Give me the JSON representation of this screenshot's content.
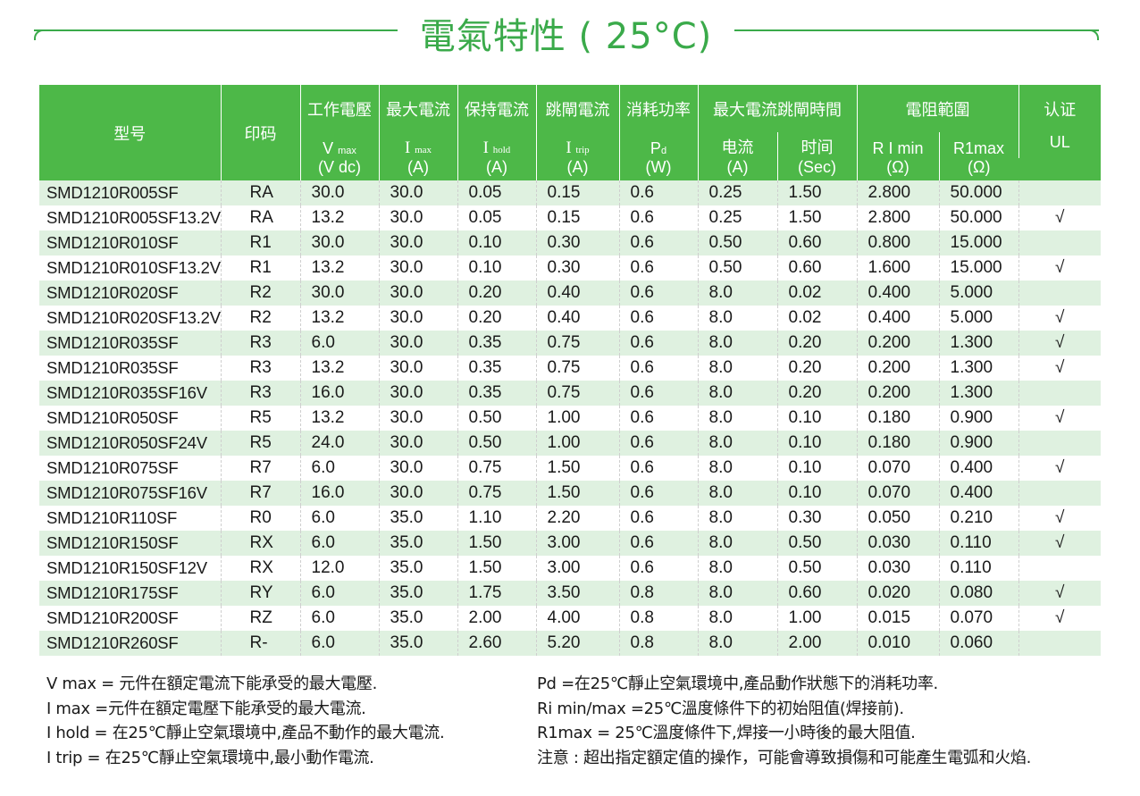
{
  "title": "電氣特性 ( 25°C)",
  "header": {
    "model": "型号",
    "mark": "印码",
    "work_voltage": "工作電壓",
    "max_current": "最大電流",
    "hold_current": "保持電流",
    "trip_current": "跳閘電流",
    "power": "消耗功率",
    "max_trip_time": "最大電流跳閘時間",
    "resistance": "電阻範圍",
    "cert": "认证",
    "vmax_sym": "V",
    "vmax_sub": "max",
    "imax_sym": "I",
    "imax_sub": "max",
    "ihold_sym": "I",
    "ihold_sub": "hold",
    "itrip_sym": "I",
    "itrip_sub": "trip",
    "pd_sym": "P",
    "pd_sub": "d",
    "current_label": "电流",
    "time_label": "时间",
    "rimin": "R I min",
    "r1max": "R1max",
    "ul": "UL",
    "unit_vdc": "(V dc)",
    "unit_a1": "(A)",
    "unit_a2": "(A)",
    "unit_a3": "(A)",
    "unit_w": "(W)",
    "unit_a4": "(A)",
    "unit_sec": "(Sec)",
    "unit_ohm1": "(Ω)",
    "unit_ohm2": "(Ω)"
  },
  "rows": [
    {
      "model": "SMD1210R005SF",
      "mark": "RA",
      "vmax": "30.0",
      "imax": "30.0",
      "ihold": "0.05",
      "itrip": "0.15",
      "pd": "0.6",
      "cur": "0.25",
      "time": "1.50",
      "rmin": "2.800",
      "rmax": "50.000",
      "ul": ""
    },
    {
      "model": "SMD1210R005SF13.2V",
      "mark": "RA",
      "vmax": "13.2",
      "imax": "30.0",
      "ihold": "0.05",
      "itrip": "0.15",
      "pd": "0.6",
      "cur": "0.25",
      "time": "1.50",
      "rmin": "2.800",
      "rmax": "50.000",
      "ul": "√"
    },
    {
      "model": "SMD1210R010SF",
      "mark": "R1",
      "vmax": "30.0",
      "imax": "30.0",
      "ihold": "0.10",
      "itrip": "0.30",
      "pd": "0.6",
      "cur": "0.50",
      "time": "0.60",
      "rmin": "0.800",
      "rmax": "15.000",
      "ul": ""
    },
    {
      "model": "SMD1210R010SF13.2V",
      "mark": "R1",
      "vmax": "13.2",
      "imax": "30.0",
      "ihold": "0.10",
      "itrip": "0.30",
      "pd": "0.6",
      "cur": "0.50",
      "time": "0.60",
      "rmin": "1.600",
      "rmax": "15.000",
      "ul": "√"
    },
    {
      "model": "SMD1210R020SF",
      "mark": "R2",
      "vmax": "30.0",
      "imax": "30.0",
      "ihold": "0.20",
      "itrip": "0.40",
      "pd": "0.6",
      "cur": "8.0",
      "time": "0.02",
      "rmin": "0.400",
      "rmax": "5.000",
      "ul": ""
    },
    {
      "model": "SMD1210R020SF13.2V",
      "mark": "R2",
      "vmax": "13.2",
      "imax": "30.0",
      "ihold": "0.20",
      "itrip": "0.40",
      "pd": "0.6",
      "cur": "8.0",
      "time": "0.02",
      "rmin": "0.400",
      "rmax": "5.000",
      "ul": "√"
    },
    {
      "model": "SMD1210R035SF",
      "mark": "R3",
      "vmax": "6.0",
      "imax": "30.0",
      "ihold": "0.35",
      "itrip": "0.75",
      "pd": "0.6",
      "cur": "8.0",
      "time": "0.20",
      "rmin": "0.200",
      "rmax": "1.300",
      "ul": "√"
    },
    {
      "model": "SMD1210R035SF",
      "mark": "R3",
      "vmax": "13.2",
      "imax": "30.0",
      "ihold": "0.35",
      "itrip": "0.75",
      "pd": "0.6",
      "cur": "8.0",
      "time": "0.20",
      "rmin": "0.200",
      "rmax": "1.300",
      "ul": "√"
    },
    {
      "model": "SMD1210R035SF16V",
      "mark": "R3",
      "vmax": "16.0",
      "imax": "30.0",
      "ihold": "0.35",
      "itrip": "0.75",
      "pd": "0.6",
      "cur": "8.0",
      "time": "0.20",
      "rmin": "0.200",
      "rmax": "1.300",
      "ul": ""
    },
    {
      "model": "SMD1210R050SF",
      "mark": "R5",
      "vmax": "13.2",
      "imax": "30.0",
      "ihold": "0.50",
      "itrip": "1.00",
      "pd": "0.6",
      "cur": "8.0",
      "time": "0.10",
      "rmin": "0.180",
      "rmax": "0.900",
      "ul": "√"
    },
    {
      "model": "SMD1210R050SF24V",
      "mark": "R5",
      "vmax": "24.0",
      "imax": "30.0",
      "ihold": "0.50",
      "itrip": "1.00",
      "pd": "0.6",
      "cur": "8.0",
      "time": "0.10",
      "rmin": "0.180",
      "rmax": "0.900",
      "ul": ""
    },
    {
      "model": "SMD1210R075SF",
      "mark": "R7",
      "vmax": "6.0",
      "imax": "30.0",
      "ihold": "0.75",
      "itrip": "1.50",
      "pd": "0.6",
      "cur": "8.0",
      "time": "0.10",
      "rmin": "0.070",
      "rmax": "0.400",
      "ul": "√"
    },
    {
      "model": "SMD1210R075SF16V",
      "mark": "R7",
      "vmax": "16.0",
      "imax": "30.0",
      "ihold": "0.75",
      "itrip": "1.50",
      "pd": "0.6",
      "cur": "8.0",
      "time": "0.10",
      "rmin": "0.070",
      "rmax": "0.400",
      "ul": ""
    },
    {
      "model": "SMD1210R110SF",
      "mark": "R0",
      "vmax": "6.0",
      "imax": "35.0",
      "ihold": "1.10",
      "itrip": "2.20",
      "pd": "0.6",
      "cur": "8.0",
      "time": "0.30",
      "rmin": "0.050",
      "rmax": "0.210",
      "ul": "√"
    },
    {
      "model": "SMD1210R150SF",
      "mark": "RX",
      "vmax": "6.0",
      "imax": "35.0",
      "ihold": "1.50",
      "itrip": "3.00",
      "pd": "0.6",
      "cur": "8.0",
      "time": "0.50",
      "rmin": "0.030",
      "rmax": "0.110",
      "ul": "√"
    },
    {
      "model": "SMD1210R150SF12V",
      "mark": "RX",
      "vmax": "12.0",
      "imax": "35.0",
      "ihold": "1.50",
      "itrip": "3.00",
      "pd": "0.6",
      "cur": "8.0",
      "time": "0.50",
      "rmin": "0.030",
      "rmax": "0.110",
      "ul": ""
    },
    {
      "model": "SMD1210R175SF",
      "mark": "RY",
      "vmax": "6.0",
      "imax": "35.0",
      "ihold": "1.75",
      "itrip": "3.50",
      "pd": "0.8",
      "cur": "8.0",
      "time": "0.60",
      "rmin": "0.020",
      "rmax": "0.080",
      "ul": "√"
    },
    {
      "model": "SMD1210R200SF",
      "mark": "RZ",
      "vmax": "6.0",
      "imax": "35.0",
      "ihold": "2.00",
      "itrip": "4.00",
      "pd": "0.8",
      "cur": "8.0",
      "time": "1.00",
      "rmin": "0.015",
      "rmax": "0.070",
      "ul": "√"
    },
    {
      "model": "SMD1210R260SF",
      "mark": "R-",
      "vmax": "6.0",
      "imax": "35.0",
      "ihold": "2.60",
      "itrip": "5.20",
      "pd": "0.8",
      "cur": "8.0",
      "time": "2.00",
      "rmin": "0.010",
      "rmax": "0.060",
      "ul": ""
    }
  ],
  "notes": {
    "left": [
      "V max = 元件在額定電流下能承受的最大電壓.",
      "I max =元件在額定電壓下能承受的最大電流.",
      "I hold = 在25℃靜止空氣環境中,產品不動作的最大電流.",
      "I trip = 在25℃靜止空氣環境中,最小動作電流."
    ],
    "right": [
      "Pd =在25℃靜止空氣環境中,產品動作狀態下的消耗功率.",
      "Ri min/max  =25℃溫度條件下的初始阻值(焊接前).",
      "R1max  = 25℃溫度條件下,焊接一小時後的最大阻值.",
      "注意 : 超出指定額定值的操作，可能會導致損傷和可能產生電弧和火焰."
    ]
  },
  "colors": {
    "accent_green": "#4db848",
    "title_green": "#3aaa4a",
    "stripe_green": "#dff1e0"
  }
}
